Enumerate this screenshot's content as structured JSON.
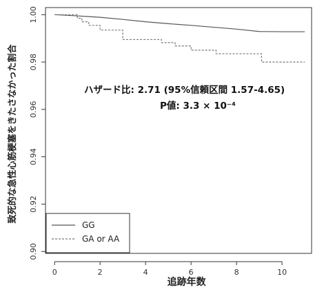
{
  "chart_data": {
    "type": "line",
    "xlabel": "追跡年数",
    "ylabel": "致死的な急性心筋梗塞をきたさなかった割合",
    "xlim": [
      -0.4,
      11.3
    ],
    "ylim": [
      0.8992,
      1.003
    ],
    "x_ticks": [
      0,
      2,
      4,
      6,
      8,
      10
    ],
    "x_tick_labels": [
      "0",
      "2",
      "4",
      "6",
      "8",
      "10"
    ],
    "y_ticks": [
      0.9,
      0.92,
      0.94,
      0.96,
      0.98,
      1.0
    ],
    "y_tick_labels": [
      "0.90",
      "0.92",
      "0.94",
      "0.96",
      "0.98",
      "1.00"
    ],
    "grid": false,
    "legend_position": "bottom-left",
    "series": [
      {
        "name": "GG",
        "line_style": "solid",
        "color": "#555555",
        "x": [
          0,
          1,
          2,
          3,
          4,
          5,
          6,
          7,
          8,
          9,
          10,
          11
        ],
        "y": [
          1.0,
          0.9995,
          0.9989,
          0.998,
          0.997,
          0.9962,
          0.9955,
          0.9947,
          0.9939,
          0.9929,
          0.9928,
          0.9928
        ]
      },
      {
        "name": "GA or AA",
        "line_style": "dashed-step",
        "color": "#777777",
        "x": [
          0,
          1.0,
          1.2,
          1.5,
          2.0,
          3.0,
          4.7,
          5.3,
          6.0,
          7.1,
          9.1,
          11.0
        ],
        "y": [
          1.0,
          0.9985,
          0.997,
          0.9955,
          0.9935,
          0.9895,
          0.9882,
          0.9868,
          0.985,
          0.9835,
          0.98,
          0.98
        ]
      }
    ],
    "annotations": [
      "ハザード比: 2.71 (95%信頼区間 1.57-4.65)",
      "P値: 3.3 × 10⁻⁴"
    ],
    "legend_entries": [
      "GG",
      "GA or AA"
    ]
  }
}
